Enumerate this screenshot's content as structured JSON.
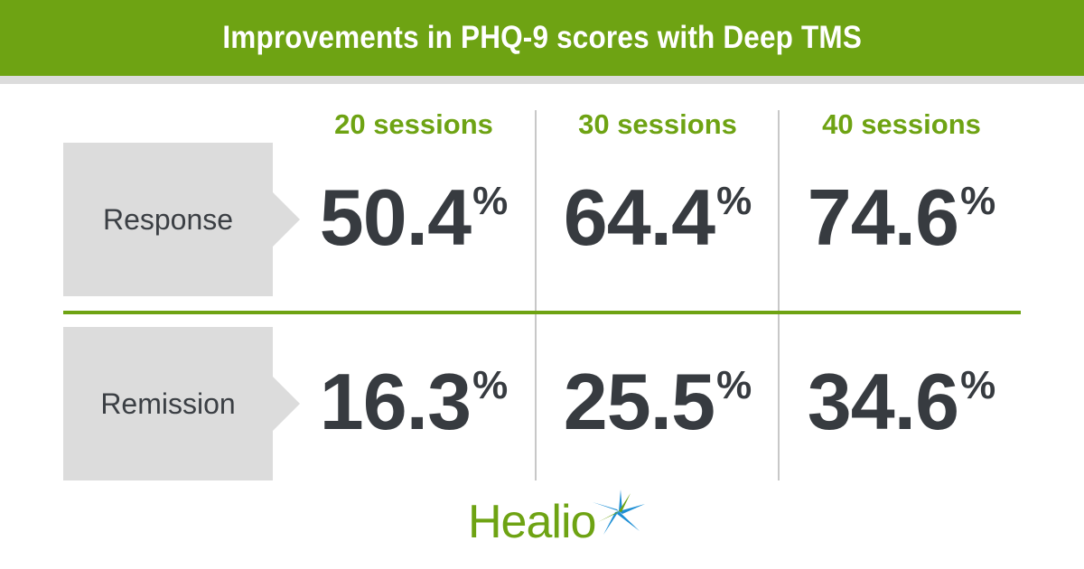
{
  "header": {
    "title": "Improvements in PHQ-9 scores with Deep TMS"
  },
  "columns": [
    {
      "label": "20 sessions"
    },
    {
      "label": "30 sessions"
    },
    {
      "label": "40 sessions"
    }
  ],
  "rows": [
    {
      "label": "Response",
      "values": [
        {
          "number": "50.4",
          "unit": "%"
        },
        {
          "number": "64.4",
          "unit": "%"
        },
        {
          "number": "74.6",
          "unit": "%"
        }
      ]
    },
    {
      "label": "Remission",
      "values": [
        {
          "number": "16.3",
          "unit": "%"
        },
        {
          "number": "25.5",
          "unit": "%"
        },
        {
          "number": "34.6",
          "unit": "%"
        }
      ]
    }
  ],
  "logo": {
    "text": "Healio"
  },
  "colors": {
    "brand_green": "#6ea313",
    "panel_gray": "#dcdcdc",
    "value_text": "#373b40",
    "star_blue": "#1e8fd5"
  },
  "icons": {
    "logo_mark": "healio-star-icon"
  }
}
